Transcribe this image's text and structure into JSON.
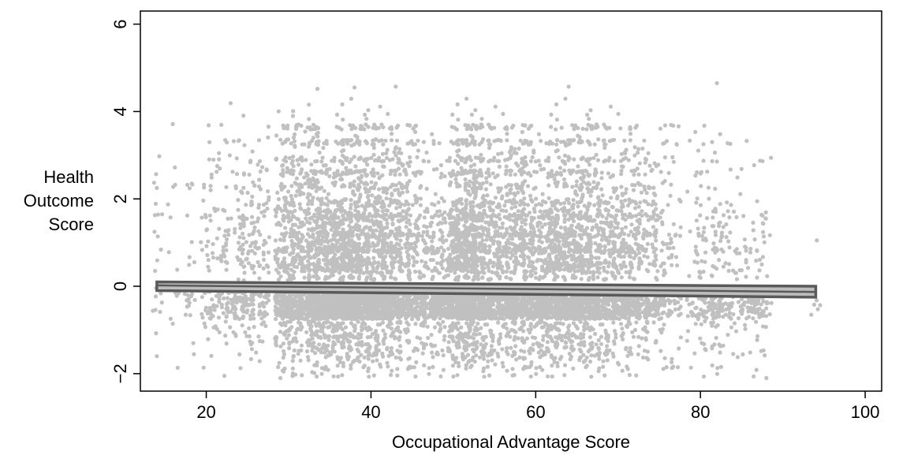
{
  "chart_data": {
    "type": "scatter",
    "xlabel": "Occupational Advantage Score",
    "ylabel_lines": [
      "Health",
      "Outcome",
      "Score"
    ],
    "xlim": [
      12,
      102
    ],
    "ylim": [
      -2.4,
      6.3
    ],
    "x_ticks": [
      20,
      40,
      60,
      80,
      100
    ],
    "y_ticks": [
      -2,
      0,
      2,
      4,
      6
    ],
    "x_tick_labels": [
      "20",
      "40",
      "60",
      "80",
      "100"
    ],
    "y_tick_labels": [
      "−2",
      "0",
      "2",
      "4",
      "6"
    ],
    "grid": false,
    "legend": "none",
    "colors": {
      "points": "#c0c0c0",
      "fit_line": "#5a5a5a",
      "ci_fill": "#bdbdbd"
    },
    "points_summary": {
      "x_range": [
        14,
        94
      ],
      "y_range": [
        -2.1,
        4.65
      ],
      "dense_band_y": [
        -0.6,
        0.3
      ],
      "notable_points": [
        {
          "x": 82,
          "y": 4.65
        },
        {
          "x": 43,
          "y": 4.57
        },
        {
          "x": 38,
          "y": 4.55
        },
        {
          "x": 64,
          "y": 4.57
        },
        {
          "x": 33.5,
          "y": 4.52
        },
        {
          "x": 14,
          "y": 2.25
        },
        {
          "x": 14,
          "y": -1.6
        },
        {
          "x": 29,
          "y": -2.1
        },
        {
          "x": 88,
          "y": -2.1
        }
      ]
    },
    "fit_line": {
      "x": [
        14,
        94
      ],
      "y": [
        0.02,
        -0.13
      ],
      "ci_lower": [
        -0.1,
        -0.25
      ],
      "ci_upper": [
        0.1,
        0.0
      ]
    }
  }
}
